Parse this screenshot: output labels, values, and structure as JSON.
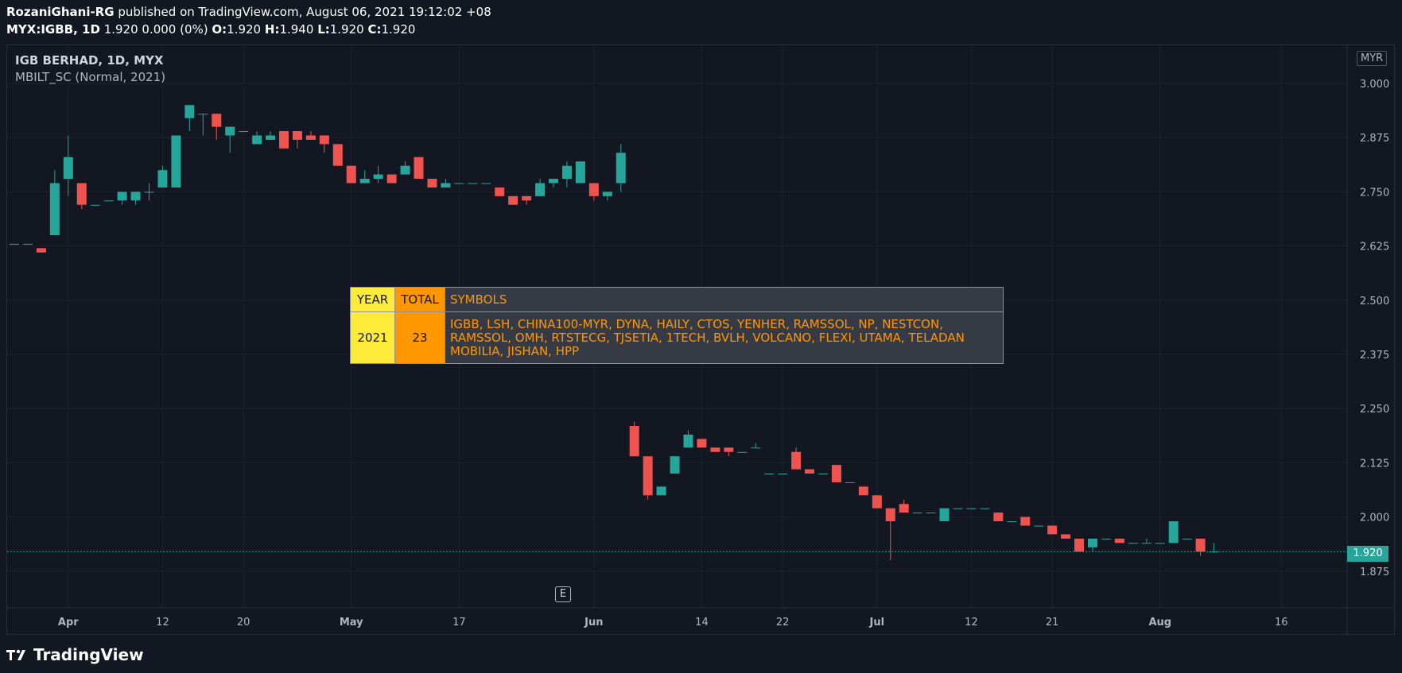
{
  "header": {
    "publisher": "RozaniGhani-RG",
    "published_text": "published on TradingView.com, August 06, 2021 19:12:02 +08",
    "symbol": "MYX:IGBB, 1D",
    "change": "1.920 0.000 (0%)",
    "ohlc": [
      {
        "label": "O:",
        "value": "1.920"
      },
      {
        "label": "H:",
        "value": "1.940"
      },
      {
        "label": "L:",
        "value": "1.920"
      },
      {
        "label": "C:",
        "value": "1.920"
      }
    ]
  },
  "legend": {
    "title": "IGB BERHAD, 1D, MYX",
    "indicator": "MBILT_SC (Normal, 2021)"
  },
  "currency": "MYR",
  "event_badge": "E",
  "last_price": "1.920",
  "footer": {
    "brand": "TradingView",
    "logo_icon": "tradingview-logo-icon"
  },
  "table": {
    "headers": {
      "year": "YEAR",
      "total": "TOTAL",
      "symbols": "SYMBOLS"
    },
    "row": {
      "year": "2021",
      "total": "23",
      "symbols_lines": [
        "IGBB, LSH, CHINA100-MYR, DYNA, HAILY, CTOS, YENHER, RAMSSOL, NP, NESTCON,",
        "RAMSSOL, OMH, RTSTECG, TJSETIA, 1TECH, BVLH, VOLCANO, FLEXI, UTAMA, TELADAN",
        "MOBILIA, JISHAN, HPP"
      ]
    }
  },
  "colors": {
    "up": "#26a69a",
    "down": "#ef5350",
    "grid": "#1e222d",
    "axis_text": "#b2b5be"
  },
  "chart_data": {
    "type": "candlestick",
    "ylim": [
      1.83,
      3.03
    ],
    "y_ticks": [
      "3.000",
      "2.875",
      "2.750",
      "2.625",
      "2.500",
      "2.375",
      "2.250",
      "2.125",
      "2.000",
      "1.875"
    ],
    "x_ticks": [
      {
        "label": "Apr",
        "i": 4,
        "bold": true
      },
      {
        "label": "12",
        "i": 11
      },
      {
        "label": "20",
        "i": 17
      },
      {
        "label": "May",
        "i": 25,
        "bold": true
      },
      {
        "label": "17",
        "i": 33
      },
      {
        "label": "Jun",
        "i": 43,
        "bold": true
      },
      {
        "label": "14",
        "i": 51
      },
      {
        "label": "22",
        "i": 57
      },
      {
        "label": "Jul",
        "i": 64,
        "bold": true
      },
      {
        "label": "12",
        "i": 71
      },
      {
        "label": "21",
        "i": 77
      },
      {
        "label": "Aug",
        "i": 85,
        "bold": true
      },
      {
        "label": "16",
        "i": 94
      }
    ],
    "last_price": 1.92,
    "candles": [
      [
        2.63,
        2.63,
        2.63,
        2.63
      ],
      [
        2.63,
        2.63,
        2.63,
        2.63
      ],
      [
        2.62,
        2.62,
        2.61,
        2.61
      ],
      [
        2.65,
        2.8,
        2.65,
        2.77
      ],
      [
        2.78,
        2.88,
        2.74,
        2.83
      ],
      [
        2.77,
        2.77,
        2.71,
        2.72
      ],
      [
        2.72,
        2.72,
        2.72,
        2.72
      ],
      [
        2.73,
        2.73,
        2.73,
        2.73
      ],
      [
        2.73,
        2.75,
        2.72,
        2.75
      ],
      [
        2.73,
        2.75,
        2.72,
        2.75
      ],
      [
        2.75,
        2.77,
        2.73,
        2.75
      ],
      [
        2.76,
        2.81,
        2.76,
        2.8
      ],
      [
        2.76,
        2.88,
        2.76,
        2.88
      ],
      [
        2.92,
        2.95,
        2.89,
        2.95
      ],
      [
        2.93,
        2.93,
        2.88,
        2.93
      ],
      [
        2.93,
        2.93,
        2.87,
        2.9
      ],
      [
        2.88,
        2.9,
        2.84,
        2.9
      ],
      [
        2.89,
        2.89,
        2.89,
        2.89
      ],
      [
        2.86,
        2.89,
        2.86,
        2.88
      ],
      [
        2.87,
        2.89,
        2.87,
        2.88
      ],
      [
        2.89,
        2.89,
        2.85,
        2.85
      ],
      [
        2.89,
        2.89,
        2.85,
        2.87
      ],
      [
        2.88,
        2.89,
        2.87,
        2.87
      ],
      [
        2.88,
        2.88,
        2.84,
        2.86
      ],
      [
        2.86,
        2.86,
        2.81,
        2.81
      ],
      [
        2.81,
        2.81,
        2.77,
        2.77
      ],
      [
        2.77,
        2.8,
        2.77,
        2.78
      ],
      [
        2.78,
        2.81,
        2.77,
        2.79
      ],
      [
        2.79,
        2.79,
        2.77,
        2.77
      ],
      [
        2.79,
        2.82,
        2.79,
        2.81
      ],
      [
        2.83,
        2.83,
        2.78,
        2.78
      ],
      [
        2.78,
        2.78,
        2.76,
        2.76
      ],
      [
        2.76,
        2.78,
        2.76,
        2.77
      ],
      [
        2.77,
        2.77,
        2.77,
        2.77
      ],
      [
        2.77,
        2.77,
        2.77,
        2.77
      ],
      [
        2.77,
        2.77,
        2.77,
        2.77
      ],
      [
        2.76,
        2.76,
        2.74,
        2.74
      ],
      [
        2.74,
        2.74,
        2.72,
        2.72
      ],
      [
        2.74,
        2.74,
        2.72,
        2.73
      ],
      [
        2.74,
        2.78,
        2.74,
        2.77
      ],
      [
        2.77,
        2.78,
        2.76,
        2.78
      ],
      [
        2.78,
        2.82,
        2.76,
        2.81
      ],
      [
        2.77,
        2.82,
        2.77,
        2.82
      ],
      [
        2.77,
        2.77,
        2.73,
        2.74
      ],
      [
        2.74,
        2.75,
        2.73,
        2.75
      ],
      [
        2.77,
        2.86,
        2.75,
        2.84
      ],
      [
        2.21,
        2.22,
        2.14,
        2.14
      ],
      [
        2.14,
        2.14,
        2.04,
        2.05
      ],
      [
        2.05,
        2.07,
        2.05,
        2.07
      ],
      [
        2.1,
        2.14,
        2.1,
        2.14
      ],
      [
        2.16,
        2.2,
        2.16,
        2.19
      ],
      [
        2.18,
        2.18,
        2.16,
        2.16
      ],
      [
        2.16,
        2.16,
        2.15,
        2.15
      ],
      [
        2.16,
        2.16,
        2.14,
        2.15
      ],
      [
        2.15,
        2.15,
        2.15,
        2.15
      ],
      [
        2.16,
        2.17,
        2.16,
        2.16
      ],
      [
        2.1,
        2.1,
        2.1,
        2.1
      ],
      [
        2.1,
        2.1,
        2.1,
        2.1
      ],
      [
        2.15,
        2.16,
        2.11,
        2.11
      ],
      [
        2.11,
        2.11,
        2.1,
        2.1
      ],
      [
        2.1,
        2.1,
        2.1,
        2.1
      ],
      [
        2.12,
        2.12,
        2.08,
        2.08
      ],
      [
        2.08,
        2.08,
        2.08,
        2.08
      ],
      [
        2.07,
        2.07,
        2.05,
        2.05
      ],
      [
        2.05,
        2.05,
        2.02,
        2.02
      ],
      [
        2.02,
        2.02,
        1.9,
        1.99
      ],
      [
        2.03,
        2.04,
        2.01,
        2.01
      ],
      [
        2.01,
        2.01,
        2.01,
        2.01
      ],
      [
        2.01,
        2.01,
        2.01,
        2.01
      ],
      [
        1.99,
        2.02,
        1.99,
        2.02
      ],
      [
        2.02,
        2.02,
        2.02,
        2.02
      ],
      [
        2.02,
        2.02,
        2.02,
        2.02
      ],
      [
        2.02,
        2.02,
        2.02,
        2.02
      ],
      [
        2.01,
        2.01,
        1.99,
        1.99
      ],
      [
        1.99,
        1.99,
        1.99,
        1.99
      ],
      [
        2.0,
        2.0,
        1.98,
        1.98
      ],
      [
        1.98,
        1.98,
        1.98,
        1.98
      ],
      [
        1.98,
        1.98,
        1.96,
        1.96
      ],
      [
        1.96,
        1.96,
        1.95,
        1.95
      ],
      [
        1.95,
        1.95,
        1.92,
        1.92
      ],
      [
        1.93,
        1.95,
        1.92,
        1.95
      ],
      [
        1.95,
        1.95,
        1.95,
        1.95
      ],
      [
        1.95,
        1.95,
        1.94,
        1.94
      ],
      [
        1.94,
        1.94,
        1.94,
        1.94
      ],
      [
        1.94,
        1.95,
        1.94,
        1.94
      ],
      [
        1.94,
        1.94,
        1.94,
        1.94
      ],
      [
        1.94,
        1.99,
        1.94,
        1.99
      ],
      [
        1.95,
        1.95,
        1.95,
        1.95
      ],
      [
        1.95,
        1.95,
        1.91,
        1.92
      ],
      [
        1.92,
        1.94,
        1.92,
        1.92
      ]
    ]
  }
}
